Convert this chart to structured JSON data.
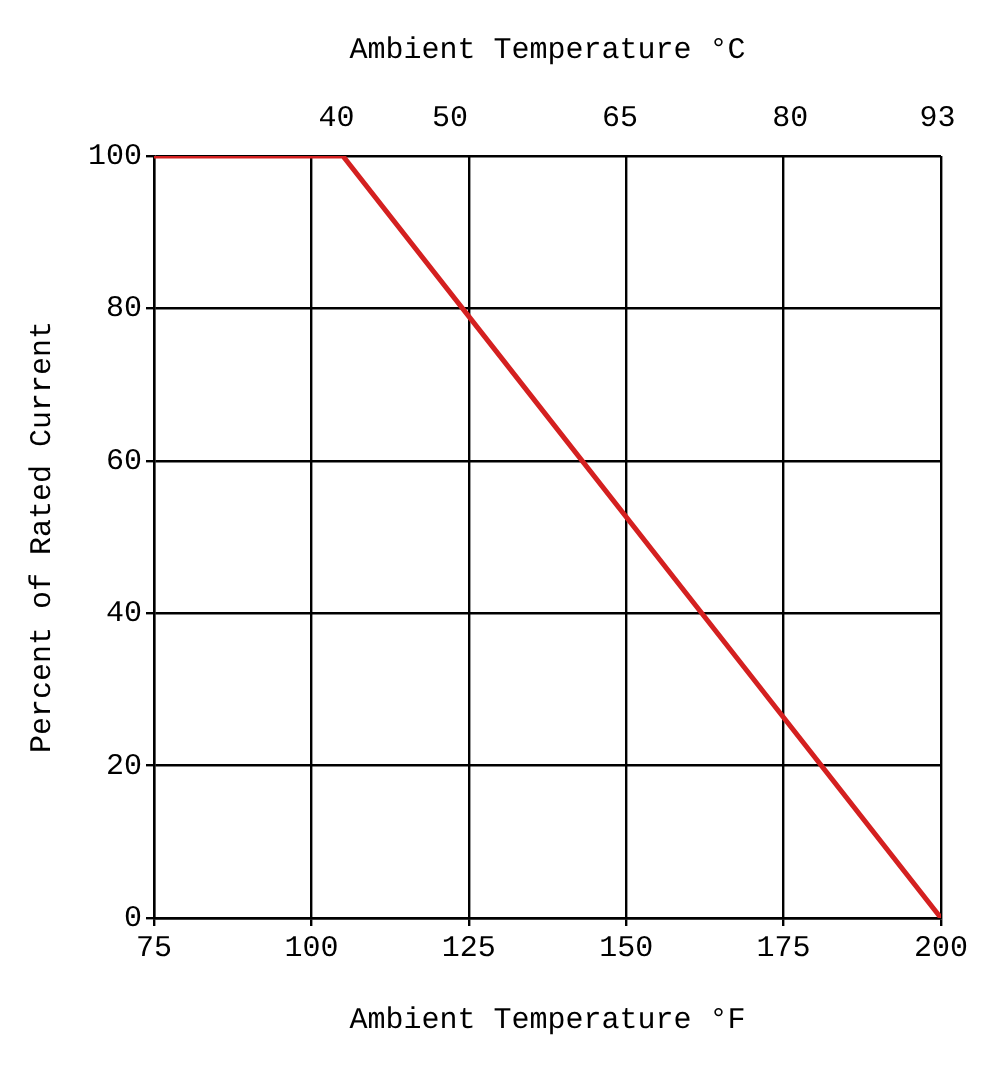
{
  "chart_data": {
    "type": "line",
    "xlabel": "Ambient Temperature °F",
    "x2label": "Ambient Temperature °C",
    "ylabel": "Percent of Rated Current",
    "x": [
      75,
      105,
      200
    ],
    "series": [
      {
        "color": "#d42020",
        "values": [
          100,
          100,
          0
        ]
      }
    ],
    "xlim": [
      75,
      200
    ],
    "xticks": [
      75,
      100,
      125,
      150,
      175,
      200
    ],
    "x2lim": [
      23.9,
      93.3
    ],
    "x2ticks": [
      40,
      50,
      65,
      80,
      93
    ],
    "ylim": [
      0,
      100
    ],
    "yticks": [
      0,
      20,
      40,
      60,
      80,
      100
    ],
    "grid": true,
    "legend": false,
    "marker": "none",
    "line_style": "solid"
  }
}
